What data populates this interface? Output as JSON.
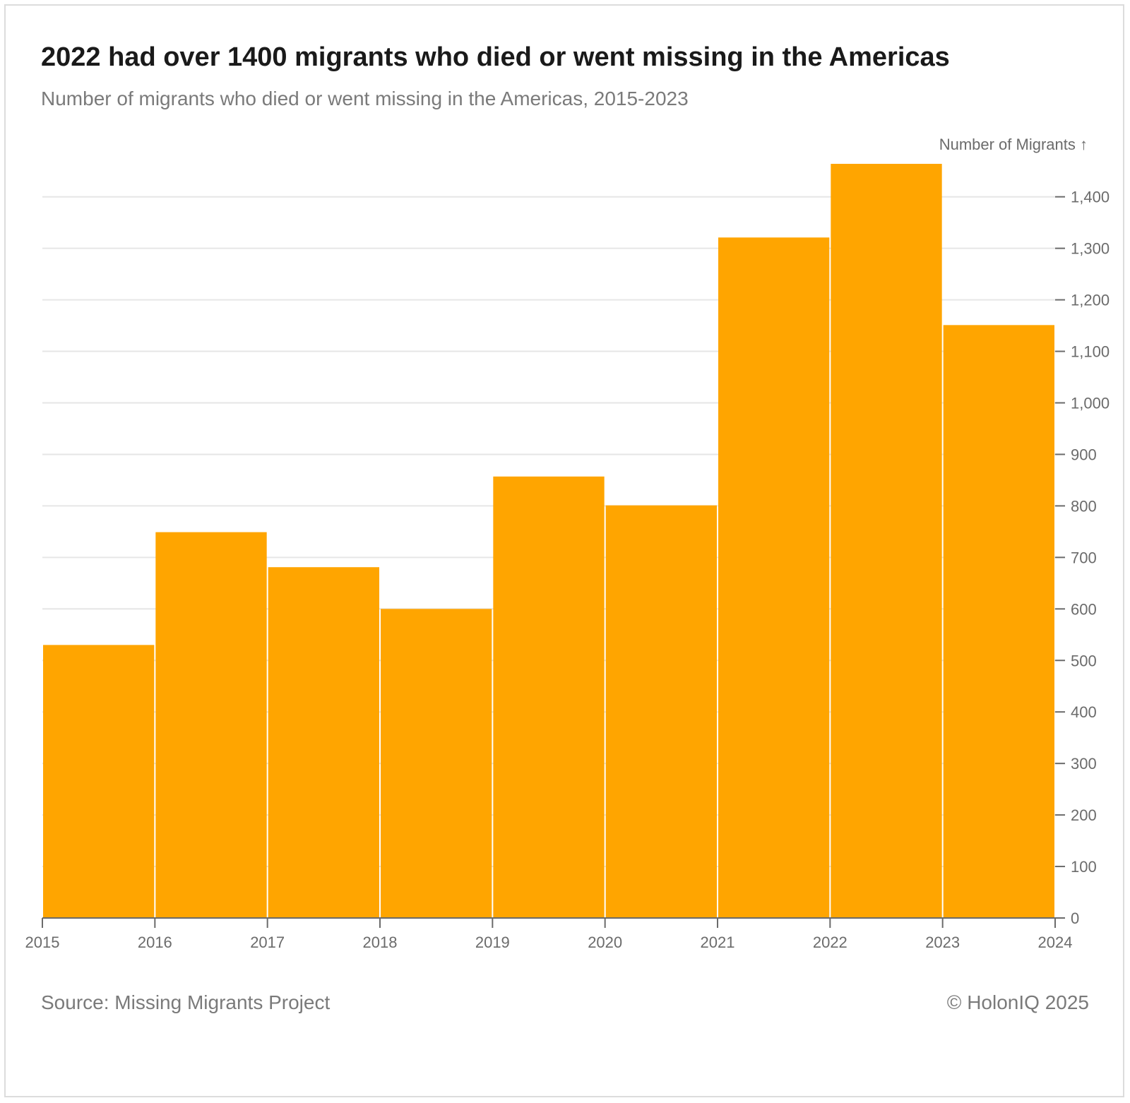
{
  "header": {
    "title": "2022 had over 1400 migrants who died or went missing in the Americas",
    "subtitle": "Number of migrants who died or went missing in the Americas, 2015-2023"
  },
  "footer": {
    "source": "Source: Missing Migrants Project",
    "credit": "© HolonIQ 2025"
  },
  "colors": {
    "bar": "#FFA500",
    "grid": "#e6e6e6",
    "axis": "#6b6b6b"
  },
  "chart_data": {
    "type": "bar",
    "title": "2022 had over 1400 migrants who died or went missing in the Americas",
    "subtitle": "Number of migrants who died or went missing in the Americas, 2015-2023",
    "xlabel": "",
    "ylabel": "Number of Migrants ↑",
    "y_axis_position": "right",
    "bins": [
      {
        "start": 2015,
        "end": 2016,
        "value": 530
      },
      {
        "start": 2016,
        "end": 2017,
        "value": 749
      },
      {
        "start": 2017,
        "end": 2018,
        "value": 681
      },
      {
        "start": 2018,
        "end": 2019,
        "value": 600
      },
      {
        "start": 2019,
        "end": 2020,
        "value": 857
      },
      {
        "start": 2020,
        "end": 2021,
        "value": 801
      },
      {
        "start": 2021,
        "end": 2022,
        "value": 1321
      },
      {
        "start": 2022,
        "end": 2023,
        "value": 1464
      },
      {
        "start": 2023,
        "end": 2024,
        "value": 1151
      }
    ],
    "x_ticks": [
      "2015",
      "2016",
      "2017",
      "2018",
      "2019",
      "2020",
      "2021",
      "2022",
      "2023",
      "2024"
    ],
    "y_ticks": [
      "0",
      "100",
      "200",
      "300",
      "400",
      "500",
      "600",
      "700",
      "800",
      "900",
      "1,000",
      "1,100",
      "1,200",
      "1,300",
      "1,400"
    ],
    "xlim": [
      2015,
      2024
    ],
    "ylim": [
      0,
      1464
    ],
    "grid": true
  }
}
